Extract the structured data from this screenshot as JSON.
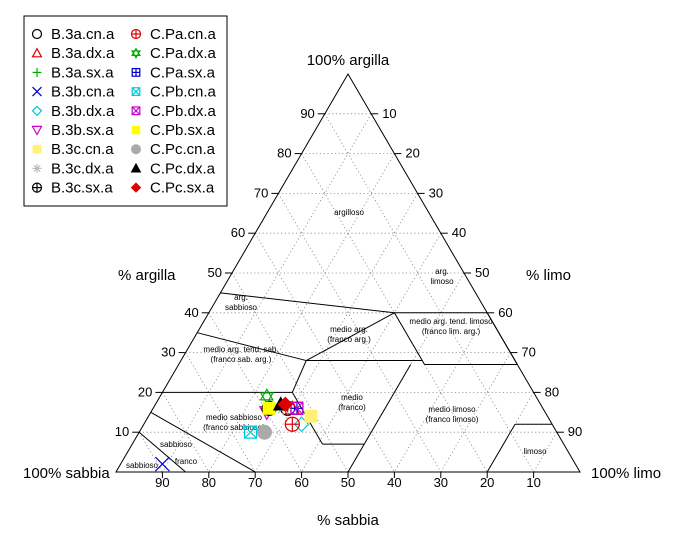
{
  "chart_data": {
    "type": "ternary-scatter",
    "axes": {
      "clay": {
        "label": "% argilla",
        "corner_label": "100% argilla"
      },
      "silt": {
        "label": "% limo",
        "corner_label": "100% limo"
      },
      "sand": {
        "label": "% sabbia",
        "corner_label": "100% sabbia"
      }
    },
    "ticks": {
      "clay": [
        "10",
        "20",
        "30",
        "40",
        "50",
        "60",
        "70",
        "80",
        "90"
      ],
      "silt": [
        "10",
        "20",
        "30",
        "40",
        "50",
        "60",
        "70",
        "80",
        "90"
      ],
      "sand": [
        "90",
        "80",
        "70",
        "60",
        "50",
        "40",
        "30",
        "20",
        "10"
      ]
    },
    "grid": true,
    "legend_position": "top-left",
    "classes": [
      {
        "lines": [
          "argilloso"
        ]
      },
      {
        "lines": [
          "arg.",
          "limoso"
        ]
      },
      {
        "lines": [
          "arg.",
          "sabbioso"
        ]
      },
      {
        "lines": [
          "medio arg.",
          "(franco arg.)"
        ]
      },
      {
        "lines": [
          "medio arg. tend. limoso",
          "(franco lim. arg.)"
        ]
      },
      {
        "lines": [
          "medio arg. tend. sab.",
          "(franco sab. arg.)"
        ]
      },
      {
        "lines": [
          "medio",
          "(franco)"
        ]
      },
      {
        "lines": [
          "medio sabbioso",
          "(franco sabbioso)"
        ]
      },
      {
        "lines": [
          "medio limoso",
          "(franco limoso)"
        ]
      },
      {
        "lines": [
          "sabbioso"
        ]
      },
      {
        "lines": [
          "franco"
        ]
      },
      {
        "lines": [
          "sabbioso"
        ]
      },
      {
        "lines": [
          "limoso"
        ]
      }
    ],
    "series": [
      {
        "name": "B.3a.cn.a",
        "marker": "circle",
        "color": "#000000",
        "points": [
          [
            55,
            29,
            16
          ]
        ]
      },
      {
        "name": "B.3a.dx.a",
        "marker": "triangle-up",
        "color": "#dd0000",
        "points": [
          [
            54,
            30,
            16
          ]
        ]
      },
      {
        "name": "B.3a.sx.a",
        "marker": "plus",
        "color": "#00aa00",
        "points": [
          [
            55,
            29,
            16
          ]
        ]
      },
      {
        "name": "B.3b.cn.a",
        "marker": "x",
        "color": "#0000cc",
        "points": [
          [
            89,
            9,
            2
          ]
        ]
      },
      {
        "name": "B.3b.dx.a",
        "marker": "diamond",
        "color": "#00c8d8",
        "points": [
          [
            54,
            34,
            12
          ]
        ]
      },
      {
        "name": "B.3b.sx.a",
        "marker": "triangle-down",
        "color": "#cc00cc",
        "points": [
          [
            60,
            25,
            15
          ]
        ]
      },
      {
        "name": "B.3c.cn.a",
        "marker": "square-filled",
        "color": "#fff176",
        "points": [
          [
            51,
            35,
            14
          ]
        ]
      },
      {
        "name": "B.3c.dx.a",
        "marker": "asterisk",
        "color": "#bbbbbb",
        "points": [
          [
            56,
            28,
            16
          ]
        ]
      },
      {
        "name": "B.3c.sx.a",
        "marker": "circle-plus",
        "color": "#000000",
        "points": [
          [
            59,
            25,
            16
          ]
        ]
      },
      {
        "name": "C.Pa.cn.a",
        "marker": "circle-plus",
        "color": "#dd0000",
        "points": [
          [
            56,
            32,
            12
          ]
        ]
      },
      {
        "name": "C.Pa.dx.a",
        "marker": "star-of-david",
        "color": "#00aa00",
        "points": [
          [
            58,
            23,
            19
          ]
        ]
      },
      {
        "name": "C.Pa.sx.a",
        "marker": "square-plus",
        "color": "#0000cc",
        "points": [
          [
            53,
            31,
            16
          ]
        ]
      },
      {
        "name": "C.Pb.cn.a",
        "marker": "square-x",
        "color": "#00c8d8",
        "points": [
          [
            66,
            24,
            10
          ]
        ]
      },
      {
        "name": "C.Pb.dx.a",
        "marker": "square-x",
        "color": "#cc00cc",
        "points": [
          [
            53,
            31,
            16
          ]
        ]
      },
      {
        "name": "C.Pb.sx.a",
        "marker": "square-filled",
        "color": "#ffff00",
        "points": [
          [
            59,
            25,
            16
          ]
        ]
      },
      {
        "name": "C.Pc.cn.a",
        "marker": "circle-filled",
        "color": "#aaaaaa",
        "points": [
          [
            63,
            27,
            10
          ]
        ]
      },
      {
        "name": "C.Pc.dx.a",
        "marker": "triangle-filled",
        "color": "#000000",
        "points": [
          [
            56,
            27,
            17
          ]
        ]
      },
      {
        "name": "C.Pc.sx.a",
        "marker": "diamond-filled",
        "color": "#dd0000",
        "points": [
          [
            55,
            28,
            17
          ]
        ]
      }
    ]
  }
}
